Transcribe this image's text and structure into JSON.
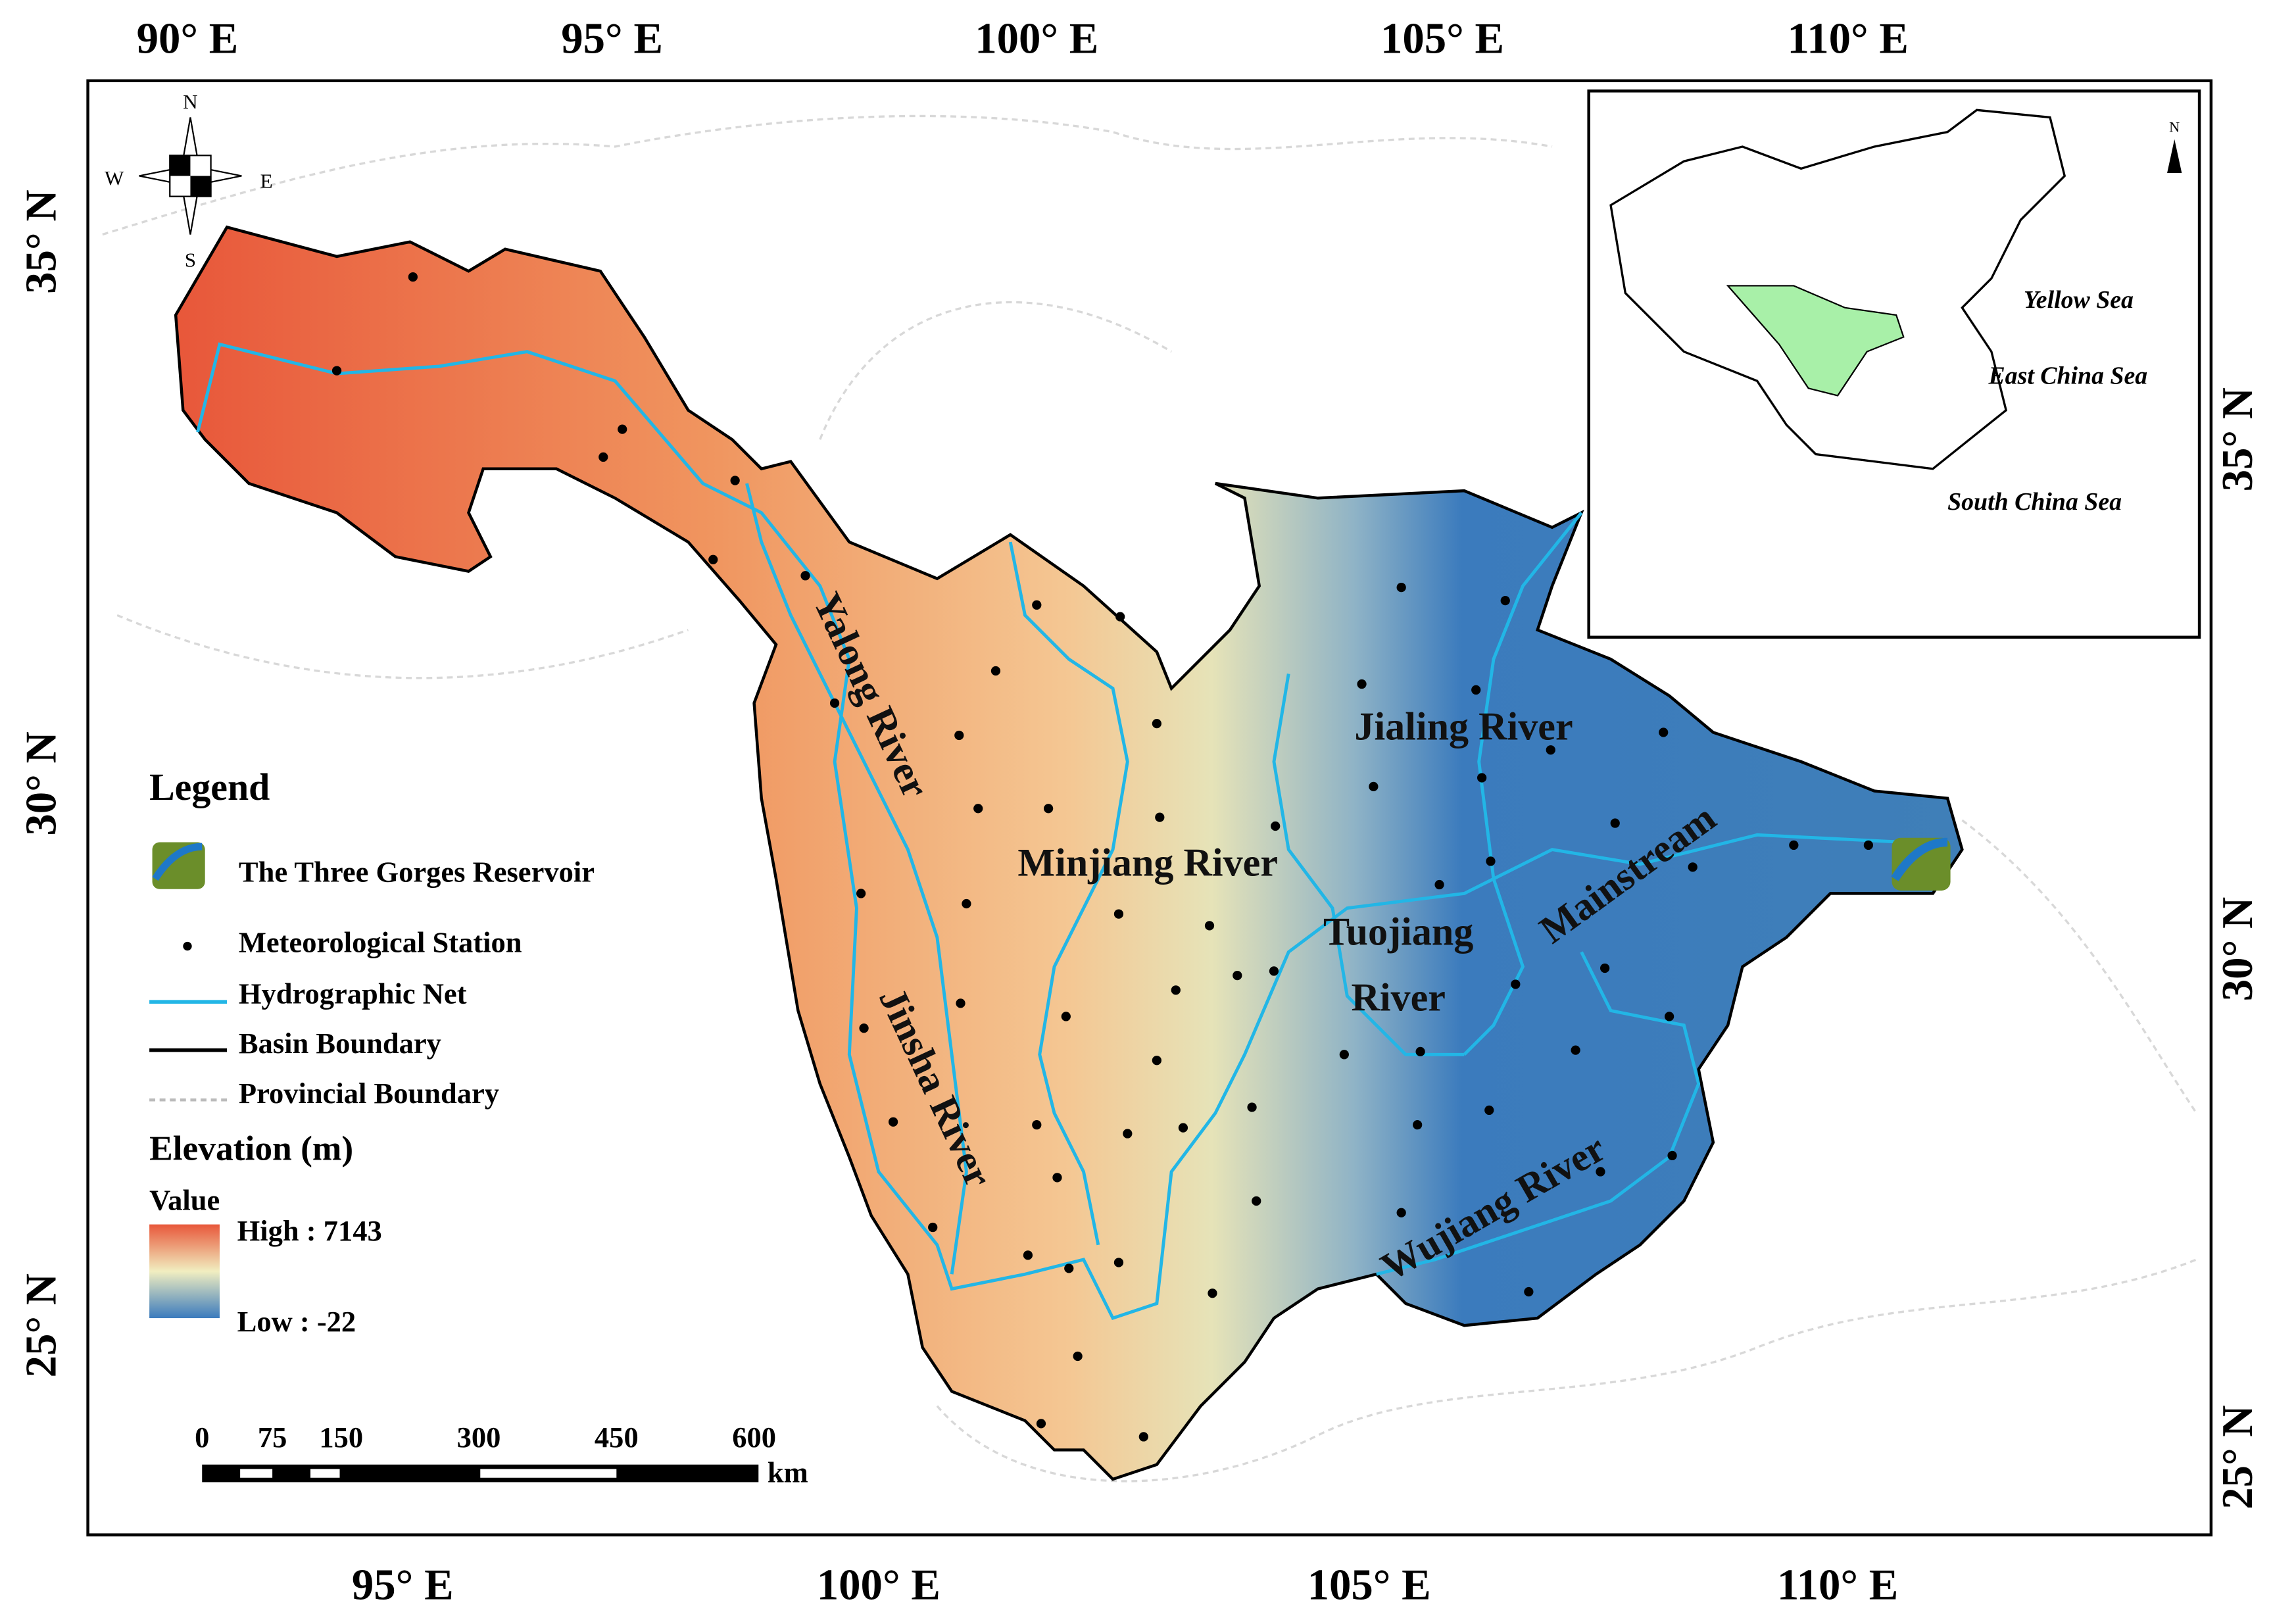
{
  "map": {
    "top_labels": [
      "90° E",
      "95° E",
      "100° E",
      "105° E",
      "110° E"
    ],
    "bottom_labels": [
      "95° E",
      "100° E",
      "105° E",
      "110° E"
    ],
    "left_labels": [
      "35° N",
      "30° N",
      "25° N"
    ],
    "right_labels": [
      "35° N",
      "30° N",
      "25° N"
    ],
    "compass": {
      "n": "N",
      "s": "S",
      "w": "W",
      "e": "E"
    },
    "rivers": {
      "yalong": "Yalong River",
      "minjiang": "Minjiang River",
      "jialing": "Jialing River",
      "mainstream": "Mainstream",
      "tuojiang": [
        "Tuojiang",
        "River"
      ],
      "jinsha": "Jinsha River",
      "wujiang": "Wujiang River"
    },
    "inset": {
      "north": "N",
      "seas": [
        "Yellow Sea",
        "East China Sea",
        "South China Sea"
      ]
    },
    "legend": {
      "title": "Legend",
      "items": [
        "The Three Gorges Reservoir",
        "Meteorological Station",
        "Hydrographic Net",
        "Basin Boundary",
        "Provincial Boundary"
      ],
      "elevation_title": "Elevation (m)",
      "value": "Value",
      "high": "High : 7143",
      "low": "Low : -22"
    },
    "scale_bar": {
      "labels": [
        "0",
        "75",
        "150",
        "300",
        "450",
        "600"
      ],
      "unit": "km"
    }
  }
}
